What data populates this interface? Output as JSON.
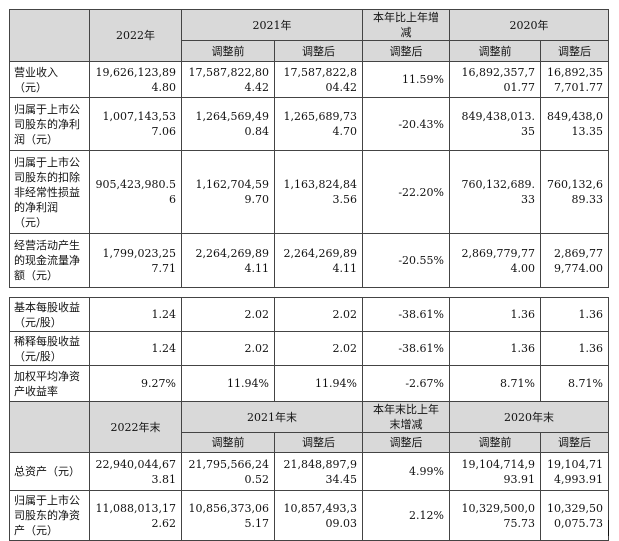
{
  "table1": {
    "header": {
      "y2022": "2022年",
      "y2021": "2021年",
      "change": "本年比上年增减",
      "y2020": "2020年",
      "before": "调整前",
      "after": "调整后",
      "change_sub": "调整后"
    },
    "rows": [
      {
        "label": "营业收入（元）",
        "v2022": "19,626,123,894.80",
        "v2021a": "17,587,822,804.42",
        "v2021b": "17,587,822,804.42",
        "chg": "11.59%",
        "v2020a": "16,892,357,701.77",
        "v2020b": "16,892,357,701.77"
      },
      {
        "label": "归属于上市公司股东的净利润（元）",
        "v2022": "1,007,143,537.06",
        "v2021a": "1,264,569,490.84",
        "v2021b": "1,265,689,734.70",
        "chg": "-20.43%",
        "v2020a": "849,438,013.35",
        "v2020b": "849,438,013.35"
      },
      {
        "label": "归属于上市公司股东的扣除非经常性损益的净利润（元）",
        "v2022": "905,423,980.56",
        "v2021a": "1,162,704,599.70",
        "v2021b": "1,163,824,843.56",
        "chg": "-22.20%",
        "v2020a": "760,132,689.33",
        "v2020b": "760,132,689.33"
      },
      {
        "label": "经营活动产生的现金流量净额（元）",
        "v2022": "1,799,023,257.71",
        "v2021a": "2,264,269,894.11",
        "v2021b": "2,264,269,894.11",
        "chg": "-20.55%",
        "v2020a": "2,869,779,774.00",
        "v2020b": "2,869,779,774.00"
      }
    ]
  },
  "table2": {
    "rows": [
      {
        "label": "基本每股收益（元/股）",
        "v2022": "1.24",
        "v2021a": "2.02",
        "v2021b": "2.02",
        "chg": "-38.61%",
        "v2020a": "1.36",
        "v2020b": "1.36"
      },
      {
        "label": "稀释每股收益（元/股）",
        "v2022": "1.24",
        "v2021a": "2.02",
        "v2021b": "2.02",
        "chg": "-38.61%",
        "v2020a": "1.36",
        "v2020b": "1.36"
      },
      {
        "label": "加权平均净资产收益率",
        "v2022": "9.27%",
        "v2021a": "11.94%",
        "v2021b": "11.94%",
        "chg": "-2.67%",
        "v2020a": "8.71%",
        "v2020b": "8.71%"
      }
    ],
    "header": {
      "y2022": "2022年末",
      "y2021": "2021年末",
      "change": "本年末比上年末增减",
      "y2020": "2020年末",
      "before": "调整前",
      "after": "调整后",
      "change_sub": "调整后"
    },
    "rows_end": [
      {
        "label": "总资产（元）",
        "v2022": "22,940,044,673.81",
        "v2021a": "21,795,566,240.52",
        "v2021b": "21,848,897,934.45",
        "chg": "4.99%",
        "v2020a": "19,104,714,993.91",
        "v2020b": "19,104,714,993.91"
      },
      {
        "label": "归属于上市公司股东的净资产（元）",
        "v2022": "11,088,013,172.62",
        "v2021a": "10,856,373,065.17",
        "v2021b": "10,857,493,309.03",
        "chg": "2.12%",
        "v2020a": "10,329,500,075.73",
        "v2020b": "10,329,500,075.73"
      }
    ]
  }
}
